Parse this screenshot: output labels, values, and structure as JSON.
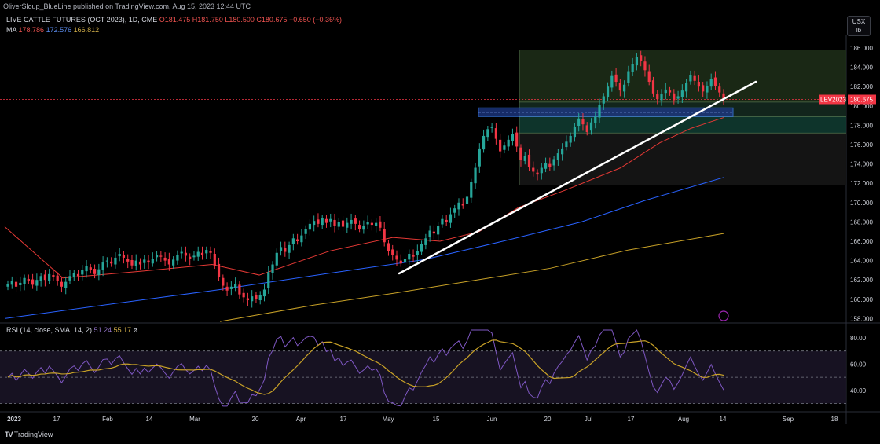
{
  "header": {
    "published": "OliverSloup_BlueLine published on TradingView.com, Aug 15, 2023 12:44 UTC"
  },
  "title": {
    "symbol": "LIVE CATTLE FUTURES (OCT 2023), 1D, CME",
    "open": "O181.475",
    "high": "H181.750",
    "low": "L180.500",
    "close": "C180.675",
    "change": "−0.650 (−0.36%)"
  },
  "ma": {
    "label": "MA",
    "v1": "178.786",
    "v2": "172.576",
    "v3": "166.812"
  },
  "rsi": {
    "label": "RSI (14, close, SMA, 14, 2)",
    "v1": "51.24",
    "v2": "55.17",
    "v3": "ø"
  },
  "unit": {
    "line1": "USX",
    "line2": "lb"
  },
  "footer": {
    "brand": "TradingView"
  },
  "colors": {
    "up": "#26a69a",
    "down": "#f23645",
    "ma1": "#e53935",
    "ma2": "#2962ff",
    "ma3": "#c9a227",
    "rsi": "#7e57c2",
    "rsi_ma": "#c9a227"
  },
  "chart_data": [
    {
      "type": "candlestick",
      "title": "LIVE CATTLE FUTURES (OCT 2023), 1D, CME",
      "y_ticks": [
        186,
        184,
        182,
        180,
        178,
        176,
        174,
        172,
        170,
        168,
        166,
        164,
        162,
        160,
        158
      ],
      "y_tick_labels": [
        "186.000",
        "184.000",
        "182.000",
        "180.000",
        "178.000",
        "176.000",
        "174.000",
        "172.000",
        "170.000",
        "168.000",
        "166.000",
        "164.000",
        "162.000",
        "160.000",
        "158.000"
      ],
      "ylim": [
        157.7,
        188.4
      ],
      "x_tick_labels": [
        "2023",
        "17",
        "Feb",
        "14",
        "Mar",
        "20",
        "Apr",
        "17",
        "May",
        "15",
        "Jun",
        "20",
        "Jul",
        "17",
        "Aug",
        "14",
        "Sep",
        "18"
      ],
      "last_price": "180.675",
      "price_tag": "LEV2023",
      "ma_values": {
        "ma1": "178.786",
        "ma2": "172.576",
        "ma3": "166.812"
      },
      "series": [
        {
          "name": "close",
          "values": [
            161.6,
            161.9,
            161.3,
            161.7,
            162.2,
            161.9,
            161.5,
            162.0,
            162.4,
            162.0,
            162.6,
            162.3,
            161.9,
            161.3,
            161.8,
            162.4,
            162.7,
            162.4,
            163.0,
            163.4,
            163.0,
            162.6,
            163.1,
            163.8,
            164.0,
            163.7,
            164.3,
            164.7,
            164.3,
            163.9,
            163.5,
            164.0,
            163.6,
            164.1,
            163.8,
            164.2,
            164.6,
            164.4,
            164.0,
            163.6,
            164.1,
            164.6,
            164.9,
            164.5,
            164.2,
            164.5,
            164.9,
            164.6,
            165.1,
            164.8,
            163.5,
            162.3,
            161.4,
            160.9,
            161.3,
            161.6,
            160.5,
            160.2,
            159.9,
            160.3,
            160.0,
            160.4,
            161.0,
            162.8,
            163.6,
            164.8,
            165.4,
            164.9,
            165.6,
            166.3,
            166.0,
            166.6,
            167.3,
            167.8,
            168.1,
            167.8,
            168.4,
            167.9,
            168.3,
            167.6,
            168.0,
            167.5,
            167.9,
            168.2,
            167.8,
            167.3,
            167.6,
            168.0,
            167.7,
            167.9,
            167.4,
            165.9,
            165.0,
            164.6,
            164.1,
            163.7,
            164.2,
            164.7,
            164.4,
            165.0,
            165.7,
            166.3,
            167.1,
            166.8,
            167.6,
            168.3,
            168.0,
            168.8,
            169.4,
            170.0,
            169.7,
            170.6,
            172.1,
            173.6,
            175.6,
            176.9,
            177.6,
            177.8,
            176.6,
            175.3,
            175.9,
            176.5,
            177.1,
            175.8,
            174.4,
            174.8,
            173.7,
            173.2,
            172.9,
            173.6,
            174.1,
            173.7,
            174.5,
            175.1,
            175.6,
            176.3,
            176.9,
            177.8,
            178.7,
            178.1,
            177.3,
            178.3,
            178.9,
            180.1,
            181.0,
            182.0,
            183.1,
            182.5,
            181.6,
            182.2,
            183.6,
            184.3,
            185.1,
            184.7,
            183.7,
            182.5,
            181.3,
            180.7,
            181.2,
            181.7,
            181.4,
            180.6,
            181.0,
            181.6,
            182.4,
            183.2,
            182.6,
            182.0,
            181.5,
            182.1,
            182.8,
            182.1,
            181.4,
            180.675
          ]
        },
        {
          "name": "MA",
          "values_label": "178.786"
        }
      ]
    },
    {
      "type": "line",
      "title": "RSI (14, close, SMA, 14, 2)",
      "y_ticks": [
        80,
        60,
        40
      ],
      "y_tick_labels": [
        "80.00",
        "60.00",
        "40.00"
      ],
      "levels": [
        70,
        50,
        30
      ],
      "ylim": [
        25,
        88
      ],
      "last_values": {
        "rsi": "51.24",
        "rsi_ma": "55.17"
      }
    }
  ]
}
